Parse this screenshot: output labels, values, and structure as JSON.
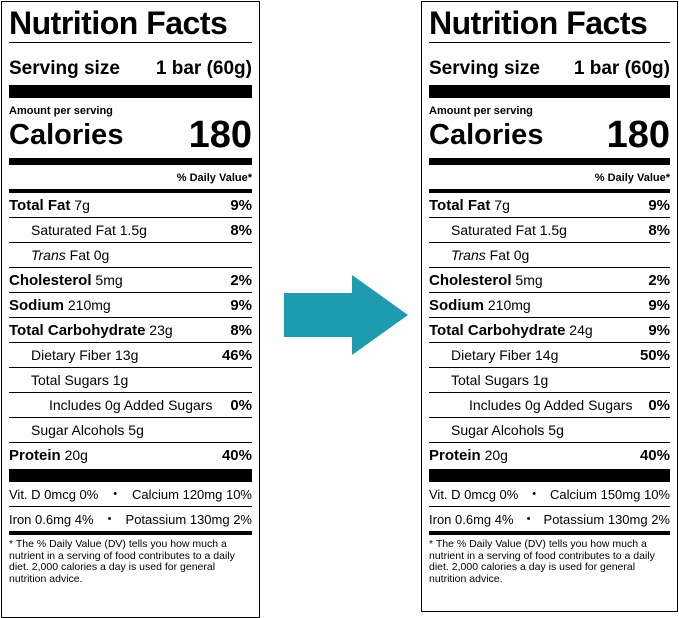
{
  "labels": [
    {
      "title": "Nutrition Facts",
      "serving_label": "Serving size",
      "serving_value": "1 bar (60g)",
      "amount_per_serving": "Amount per serving",
      "calories_label": "Calories",
      "calories_value": "180",
      "daily_value_header": "% Daily Value*",
      "total_fat": {
        "name": "Total Fat",
        "amount": "7g",
        "pct": "9%"
      },
      "saturated_fat": {
        "name": "Saturated Fat 1.5g",
        "pct": "8%"
      },
      "trans_fat": {
        "name_italic": "Trans",
        "rest": "Fat 0g"
      },
      "cholesterol": {
        "name": "Cholesterol",
        "amount": "5mg",
        "pct": "2%"
      },
      "sodium": {
        "name": "Sodium",
        "amount": "210mg",
        "pct": "9%"
      },
      "total_carb": {
        "name": "Total Carbohydrate",
        "amount": "23g",
        "pct": "8%"
      },
      "fiber": {
        "name": "Dietary Fiber 13g",
        "pct": "46%"
      },
      "total_sugars": {
        "name": "Total Sugars 1g"
      },
      "added_sugars": {
        "name": "Includes 0g Added Sugars",
        "pct": "0%"
      },
      "sugar_alcohols": {
        "name": "Sugar Alcohols 5g"
      },
      "protein": {
        "name": "Protein",
        "amount": "20g",
        "pct": "40%"
      },
      "vitd": "Vit. D 0mcg 0%",
      "calcium": "Calcium 120mg 10%",
      "iron": "Iron 0.6mg 4%",
      "potassium": "Potassium 130mg 2%",
      "bullet": "•",
      "footnote": "* The % Daily Value (DV) tells you how much a nutrient in a serving of food contributes to a daily diet. 2,000 calories a day is used for general nutrition advice."
    },
    {
      "title": "Nutrition Facts",
      "serving_label": "Serving size",
      "serving_value": "1 bar (60g)",
      "amount_per_serving": "Amount per serving",
      "calories_label": "Calories",
      "calories_value": "180",
      "daily_value_header": "% Daily Value*",
      "total_fat": {
        "name": "Total Fat",
        "amount": "7g",
        "pct": "9%"
      },
      "saturated_fat": {
        "name": "Saturated Fat 1.5g",
        "pct": "8%"
      },
      "trans_fat": {
        "name_italic": "Trans",
        "rest": "Fat 0g"
      },
      "cholesterol": {
        "name": "Cholesterol",
        "amount": "5mg",
        "pct": "2%"
      },
      "sodium": {
        "name": "Sodium",
        "amount": "210mg",
        "pct": "9%"
      },
      "total_carb": {
        "name": "Total Carbohydrate",
        "amount": "24g",
        "pct": "9%"
      },
      "fiber": {
        "name": "Dietary Fiber 14g",
        "pct": "50%"
      },
      "total_sugars": {
        "name": "Total Sugars 1g"
      },
      "added_sugars": {
        "name": "Includes 0g Added Sugars",
        "pct": "0%"
      },
      "sugar_alcohols": {
        "name": "Sugar Alcohols 5g"
      },
      "protein": {
        "name": "Protein",
        "amount": "20g",
        "pct": "40%"
      },
      "vitd": "Vit. D 0mcg 0%",
      "calcium": "Calcium 150mg 10%",
      "iron": "Iron 0.6mg 4%",
      "potassium": "Potassium 130mg 2%",
      "bullet": "•",
      "footnote": "* The % Daily Value (DV) tells you how much a nutrient in a serving of food contributes to a daily diet. 2,000 calories a day is used for general nutrition advice."
    }
  ],
  "arrow": {
    "icon": "right-arrow-icon",
    "color": "#1F9BB0"
  }
}
